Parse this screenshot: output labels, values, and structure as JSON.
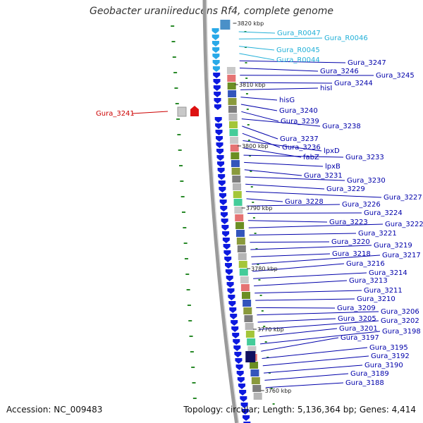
{
  "title": "Geobacter uraniireducens Rf4, complete genome",
  "accession": "Accession: NC_009483",
  "topology": "Topology: circular; Length: 5,136,364 bp; Genes: 4,414",
  "colors": {
    "gene_label": "#0000aa",
    "rna_label": "#22b0d8",
    "highlight_label": "#cc0000",
    "forward_arrow": "#0d1ae0",
    "tick": "#2a8a2a"
  },
  "kbp_ticks": [
    "3820 kbp",
    "3810 kbp",
    "3800 kbp",
    "3790 kbp",
    "3780 kbp",
    "3770 kbp",
    "3760 kbp"
  ],
  "gene_labels": [
    {
      "name": "Gura_R0047",
      "kind": "rna"
    },
    {
      "name": "Gura_R0046",
      "kind": "rna"
    },
    {
      "name": "Gura_R0045",
      "kind": "rna"
    },
    {
      "name": "Gura_R0044",
      "kind": "rna"
    },
    {
      "name": "Gura_3247",
      "kind": "gene"
    },
    {
      "name": "Gura_3246",
      "kind": "gene"
    },
    {
      "name": "Gura_3245",
      "kind": "gene"
    },
    {
      "name": "Gura_3244",
      "kind": "gene"
    },
    {
      "name": "hisI",
      "kind": "gene"
    },
    {
      "name": "hisG",
      "kind": "gene"
    },
    {
      "name": "Gura_3240",
      "kind": "gene"
    },
    {
      "name": "Gura_3239",
      "kind": "gene"
    },
    {
      "name": "Gura_3238",
      "kind": "gene"
    },
    {
      "name": "Gura_3237",
      "kind": "gene"
    },
    {
      "name": "Gura_3236",
      "kind": "gene"
    },
    {
      "name": "lpxD",
      "kind": "gene"
    },
    {
      "name": "fabZ",
      "kind": "gene"
    },
    {
      "name": "Gura_3233",
      "kind": "gene"
    },
    {
      "name": "lpxB",
      "kind": "gene"
    },
    {
      "name": "Gura_3231",
      "kind": "gene"
    },
    {
      "name": "Gura_3230",
      "kind": "gene"
    },
    {
      "name": "Gura_3229",
      "kind": "gene"
    },
    {
      "name": "Gura_3227",
      "kind": "gene"
    },
    {
      "name": "Gura_3228",
      "kind": "gene"
    },
    {
      "name": "Gura_3226",
      "kind": "gene"
    },
    {
      "name": "Gura_3224",
      "kind": "gene"
    },
    {
      "name": "Gura_3223",
      "kind": "gene"
    },
    {
      "name": "Gura_3222",
      "kind": "gene"
    },
    {
      "name": "Gura_3221",
      "kind": "gene"
    },
    {
      "name": "Gura_3220",
      "kind": "gene"
    },
    {
      "name": "Gura_3219",
      "kind": "gene"
    },
    {
      "name": "Gura_3218",
      "kind": "gene"
    },
    {
      "name": "Gura_3217",
      "kind": "gene"
    },
    {
      "name": "Gura_3216",
      "kind": "gene"
    },
    {
      "name": "Gura_3214",
      "kind": "gene"
    },
    {
      "name": "Gura_3213",
      "kind": "gene"
    },
    {
      "name": "Gura_3211",
      "kind": "gene"
    },
    {
      "name": "Gura_3210",
      "kind": "gene"
    },
    {
      "name": "Gura_3209",
      "kind": "gene"
    },
    {
      "name": "Gura_3206",
      "kind": "gene"
    },
    {
      "name": "Gura_3205",
      "kind": "gene"
    },
    {
      "name": "Gura_3202",
      "kind": "gene"
    },
    {
      "name": "Gura_3201",
      "kind": "gene"
    },
    {
      "name": "Gura_3198",
      "kind": "gene"
    },
    {
      "name": "Gura_3197",
      "kind": "gene"
    },
    {
      "name": "Gura_3195",
      "kind": "gene"
    },
    {
      "name": "Gura_3192",
      "kind": "gene"
    },
    {
      "name": "Gura_3190",
      "kind": "gene"
    },
    {
      "name": "Gura_3189",
      "kind": "gene"
    },
    {
      "name": "Gura_3188",
      "kind": "gene"
    }
  ],
  "left_labels": [
    {
      "name": "Gura_3241",
      "kind": "highlight"
    }
  ]
}
